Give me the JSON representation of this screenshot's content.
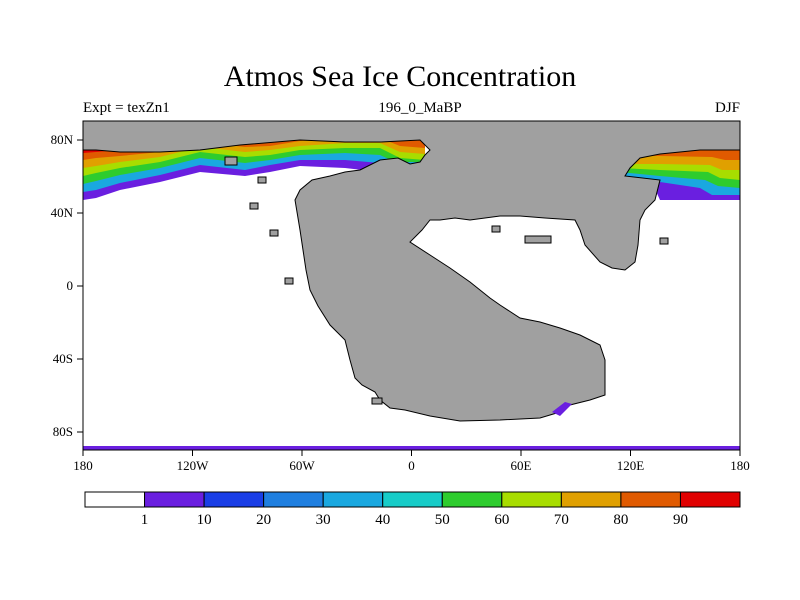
{
  "title": "Atmos Sea Ice Concentration",
  "left_label": "Expt = texZn1",
  "center_label": "196_0_MaBP",
  "right_label": "DJF",
  "x_ticks": [
    "180",
    "120W",
    "60W",
    "0",
    "60E",
    "120E",
    "180"
  ],
  "y_ticks": [
    "80N",
    "40N",
    "0",
    "40S",
    "80S"
  ],
  "colorbar": {
    "labels": [
      "1",
      "10",
      "20",
      "30",
      "40",
      "50",
      "60",
      "70",
      "80",
      "90"
    ],
    "colors": [
      "#ffffff",
      "#6a1fe0",
      "#1a3ee6",
      "#1f7fe0",
      "#1aa8e0",
      "#17ccc8",
      "#2ecc2e",
      "#a8dd00",
      "#e0a000",
      "#e05a00",
      "#e00000"
    ]
  },
  "colors": {
    "land": "#a0a0a0",
    "ocean": "#ffffff"
  }
}
